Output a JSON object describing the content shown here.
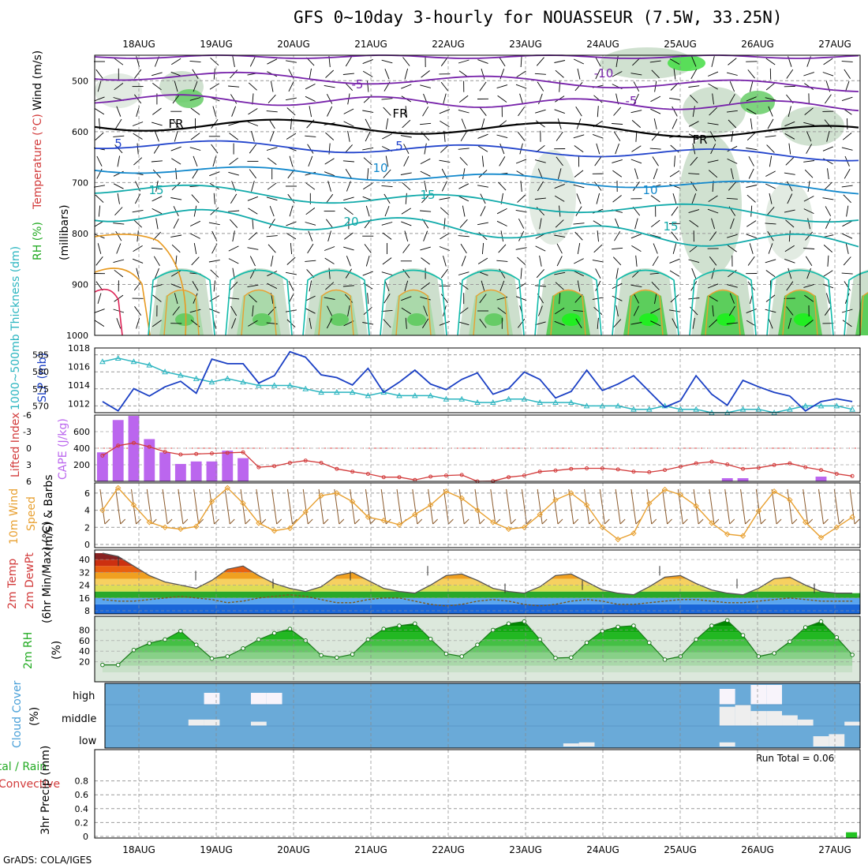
{
  "title": "GFS 0~10day 3-hourly for NOUASSEUR (7.5W, 33.25N)",
  "credit": "GrADS: COLA/IGES",
  "dates": [
    "18AUG",
    "19AUG",
    "20AUG",
    "21AUG",
    "22AUG",
    "23AUG",
    "24AUG",
    "25AUG",
    "26AUG",
    "27AUG"
  ],
  "colors": {
    "temp_line": "#1e90a0",
    "slp_line": "#1a3fc4",
    "thickness_line": "#2bb5c0",
    "lifted_index": "#d23a3a",
    "cape_bar": "#bb66ee",
    "wind_speed": "#e8a030",
    "rh_green": "#22c322",
    "cloud_bg": "#6aaad8",
    "cloud_fill": "#eeeeee",
    "precip_bar": "#22c322"
  },
  "labels": {
    "p1_rh": "RH (%)",
    "p1_temp": "Temperature (°C)",
    "p1_wind": "Wind (m/s)",
    "p1_mb": "(millibars)",
    "p2_thick": "1000~500mb Thickness (dm)",
    "p2_slp": "SLP (mb)",
    "p3_li": "Lifted Index",
    "p3_cape": "CAPE (J/kg)",
    "p4_1": "10m Wind",
    "p4_2": "Speed",
    "p4_3": "(m/s) & Barbs",
    "p5_1": "2m Temp",
    "p5_2": "2m DewPt",
    "p5_3": "(6hr Min/Max) (°C)",
    "p6_1": "2m RH",
    "p6_2": "(%)",
    "p7_1": "Cloud Cover",
    "p7_2": "(%)",
    "p8_1": "Total / Rain",
    "p8_2": "Convective",
    "p8_3": "3hr Precip (mm)",
    "run_total": "Run Total = 0.06",
    "cloud_high": "high",
    "cloud_middle": "middle",
    "cloud_low": "low"
  },
  "contour_labels": {
    "t_m10": "-10",
    "t_m5a": "-5",
    "t_m5b": "-5",
    "fr1": "FR",
    "fr2": "FR",
    "fr3": "FR",
    "t5a": "5",
    "t5b": "5",
    "t10a": "10",
    "t10b": "10",
    "t15a": "15",
    "t15b": "15",
    "t15c": "15",
    "t20": "20"
  },
  "chart_data": [
    {
      "type": "heatmap",
      "panel": "upper-air time-height cross section",
      "y_axis": "pressure (mb)",
      "ylim": [
        1000,
        450
      ],
      "yticks": [
        500,
        600,
        700,
        800,
        900,
        1000
      ],
      "x_dates": [
        "18AUG",
        "19AUG",
        "20AUG",
        "21AUG",
        "22AUG",
        "23AUG",
        "24AUG",
        "25AUG",
        "26AUG",
        "27AUG"
      ],
      "isotherm_labels_c": [
        -10,
        -5,
        0,
        5,
        10,
        15,
        20
      ],
      "freezing_level_mb_approx": [
        585,
        590,
        585,
        580,
        585,
        590,
        600,
        595,
        590,
        585
      ]
    },
    {
      "type": "line",
      "panel": "thickness and sea level pressure",
      "series": [
        {
          "name": "SLP (mb)",
          "values": [
            1012.2,
            1011.2,
            1013.6,
            1012.8,
            1013.8,
            1014.4,
            1013.1,
            1016.8,
            1016.3,
            1016.3,
            1014.2,
            1015.0,
            1017.6,
            1017.0,
            1015.1,
            1014.8,
            1014.0,
            1015.8,
            1013.2,
            1014.3,
            1015.6,
            1014.1,
            1013.5,
            1014.6,
            1015.3,
            1013.0,
            1013.6,
            1015.4,
            1014.6,
            1012.6,
            1013.3,
            1015.6,
            1013.4,
            1014.1,
            1015.0,
            1013.3,
            1011.6,
            1012.3,
            1015.0,
            1013.0,
            1011.8,
            1014.5,
            1013.8,
            1013.2,
            1012.8,
            1011.2,
            1012.2,
            1012.5,
            1012.2
          ]
        },
        {
          "name": "1000~500mb Thickness (dm)",
          "values": [
            583,
            584,
            583,
            582,
            580,
            579,
            578,
            577,
            578,
            577,
            576,
            576,
            576,
            575,
            574,
            574,
            574,
            573,
            574,
            573,
            573,
            573,
            572,
            572,
            571,
            571,
            572,
            572,
            571,
            571,
            571,
            570,
            570,
            570,
            569,
            569,
            570,
            569,
            569,
            568,
            568,
            569,
            569,
            568,
            569,
            570,
            570,
            570,
            569
          ]
        }
      ],
      "ylim_left_dm": [
        568,
        587
      ],
      "yticks_left_dm": [
        570,
        575,
        580,
        585
      ],
      "ylim_right_mb": [
        1011,
        1018
      ],
      "yticks_right_mb": [
        1012,
        1014,
        1016,
        1018
      ]
    },
    {
      "type": "bar",
      "panel": "lifted index and CAPE",
      "series": [
        {
          "name": "CAPE (J/kg)",
          "values": [
            350,
            740,
            790,
            510,
            350,
            210,
            240,
            240,
            370,
            280,
            0,
            0,
            0,
            0,
            0,
            0,
            0,
            0,
            0,
            0,
            0,
            0,
            0,
            0,
            0,
            0,
            0,
            0,
            0,
            0,
            0,
            0,
            0,
            0,
            0,
            0,
            0,
            0,
            0,
            0,
            0,
            0,
            0,
            0,
            0,
            0,
            0,
            0,
            0
          ]
        },
        {
          "name": "Lifted Index",
          "values": [
            -1.8,
            -3.6,
            -4.1,
            -3.4,
            -2.5,
            -2.0,
            -2.1,
            -2.2,
            -2.3,
            -2.4,
            0.3,
            0.1,
            -0.5,
            -0.9,
            -0.5,
            0.6,
            1.1,
            1.5,
            2.1,
            2.1,
            2.6,
            2.0,
            1.8,
            1.7,
            2.9,
            2.8,
            2.1,
            1.8,
            1.1,
            0.9,
            0.6,
            0.5,
            0.5,
            0.7,
            1.1,
            1.2,
            0.8,
            0.2,
            -0.4,
            -0.7,
            -0.2,
            0.6,
            0.4,
            -0.1,
            -0.4,
            0.3,
            0.8,
            1.5,
            1.9
          ]
        }
      ],
      "ylim_cape": [
        0,
        800
      ],
      "yticks_cape": [
        200,
        400,
        600
      ],
      "yticks_li": [
        -6,
        -3,
        0,
        3,
        6
      ]
    },
    {
      "type": "line",
      "panel": "10m wind speed and barbs",
      "series": [
        {
          "name": "10m Wind Speed (m/s)",
          "values": [
            4.0,
            6.6,
            4.6,
            2.6,
            2.0,
            1.8,
            2.1,
            5.0,
            6.6,
            4.8,
            2.5,
            1.6,
            1.9,
            3.8,
            5.7,
            6.0,
            5.0,
            3.2,
            2.8,
            2.3,
            3.5,
            4.6,
            6.2,
            5.4,
            4.0,
            2.6,
            1.8,
            2.0,
            3.5,
            5.2,
            6.0,
            4.6,
            2.0,
            0.6,
            1.3,
            4.8,
            6.4,
            5.8,
            4.5,
            2.5,
            1.2,
            1.0,
            3.9,
            6.2,
            5.2,
            2.6,
            0.8,
            2.0,
            3.2
          ]
        }
      ],
      "ylim": [
        0,
        7
      ],
      "yticks": [
        0,
        2,
        4,
        6
      ]
    },
    {
      "type": "area",
      "panel": "2m temperature and dew point",
      "series": [
        {
          "name": "2m Temp (°C)",
          "values": [
            44,
            42,
            36,
            30,
            26,
            24,
            22,
            27,
            34,
            36,
            30,
            25,
            22,
            20,
            23,
            30,
            32,
            27,
            22,
            20,
            19,
            24,
            30,
            31,
            27,
            22,
            20,
            19,
            23,
            30,
            31,
            26,
            21,
            19,
            18,
            23,
            29,
            30,
            25,
            21,
            19,
            18,
            22,
            28,
            29,
            24,
            20,
            19,
            19
          ]
        },
        {
          "name": "2m DewPt (°C)",
          "values": [
            15,
            14,
            14,
            15,
            16,
            17,
            16,
            15,
            13,
            14,
            16,
            17,
            18,
            17,
            15,
            13,
            13,
            15,
            16,
            16,
            14,
            12,
            11,
            12,
            14,
            15,
            14,
            12,
            11,
            12,
            14,
            15,
            14,
            12,
            12,
            13,
            14,
            15,
            15,
            14,
            13,
            13,
            14,
            15,
            16,
            15,
            14,
            14,
            14
          ]
        }
      ],
      "ylim": [
        6,
        46
      ],
      "yticks": [
        8,
        16,
        24,
        32,
        40
      ]
    },
    {
      "type": "area",
      "panel": "2m relative humidity",
      "series": [
        {
          "name": "2m RH (%)",
          "values": [
            14,
            14,
            42,
            55,
            62,
            78,
            52,
            26,
            30,
            45,
            62,
            74,
            82,
            60,
            32,
            28,
            34,
            62,
            82,
            88,
            92,
            63,
            35,
            30,
            52,
            80,
            92,
            96,
            62,
            27,
            28,
            56,
            78,
            86,
            88,
            56,
            24,
            30,
            62,
            88,
            98,
            70,
            30,
            36,
            58,
            85,
            96,
            66,
            33
          ]
        }
      ],
      "ylim": [
        0,
        100
      ],
      "yticks": [
        20,
        40,
        60,
        80
      ]
    },
    {
      "type": "bar",
      "panel": "cloud cover",
      "series": [
        {
          "name": "high",
          "values": [
            0,
            0,
            0,
            0,
            0,
            0,
            0,
            60,
            0,
            0,
            60,
            60,
            0,
            0,
            0,
            0,
            0,
            0,
            0,
            0,
            0,
            0,
            0,
            0,
            0,
            0,
            0,
            0,
            0,
            0,
            0,
            0,
            0,
            0,
            0,
            0,
            0,
            0,
            0,
            0,
            80,
            0,
            100,
            100,
            0,
            0,
            0,
            0,
            0
          ]
        },
        {
          "name": "middle",
          "values": [
            0,
            0,
            0,
            0,
            0,
            0,
            30,
            30,
            0,
            0,
            20,
            0,
            0,
            0,
            0,
            0,
            0,
            0,
            0,
            0,
            0,
            0,
            0,
            0,
            0,
            0,
            0,
            0,
            0,
            0,
            0,
            0,
            0,
            0,
            0,
            0,
            0,
            0,
            0,
            0,
            90,
            100,
            70,
            70,
            50,
            30,
            0,
            0,
            20
          ]
        },
        {
          "name": "low",
          "values": [
            0,
            0,
            0,
            0,
            0,
            0,
            0,
            0,
            0,
            0,
            0,
            0,
            0,
            0,
            0,
            0,
            0,
            0,
            0,
            0,
            0,
            0,
            0,
            0,
            0,
            0,
            0,
            0,
            0,
            0,
            15,
            20,
            0,
            0,
            0,
            0,
            0,
            0,
            0,
            0,
            20,
            0,
            0,
            0,
            0,
            0,
            50,
            60,
            0
          ]
        }
      ],
      "yticks": [
        "high",
        "middle",
        "low"
      ]
    },
    {
      "type": "bar",
      "panel": "3hr precipitation",
      "series": [
        {
          "name": "Total / Rain (mm)",
          "values": [
            0,
            0,
            0,
            0,
            0,
            0,
            0,
            0,
            0,
            0,
            0,
            0,
            0,
            0,
            0,
            0,
            0,
            0,
            0,
            0,
            0,
            0,
            0,
            0,
            0,
            0,
            0,
            0,
            0,
            0,
            0,
            0,
            0,
            0,
            0,
            0,
            0,
            0,
            0,
            0,
            0,
            0,
            0,
            0,
            0,
            0,
            0,
            0,
            0.06
          ]
        }
      ],
      "ylim": [
        0,
        1.0
      ],
      "yticks": [
        0,
        0.2,
        0.4,
        0.6,
        0.8
      ]
    }
  ]
}
